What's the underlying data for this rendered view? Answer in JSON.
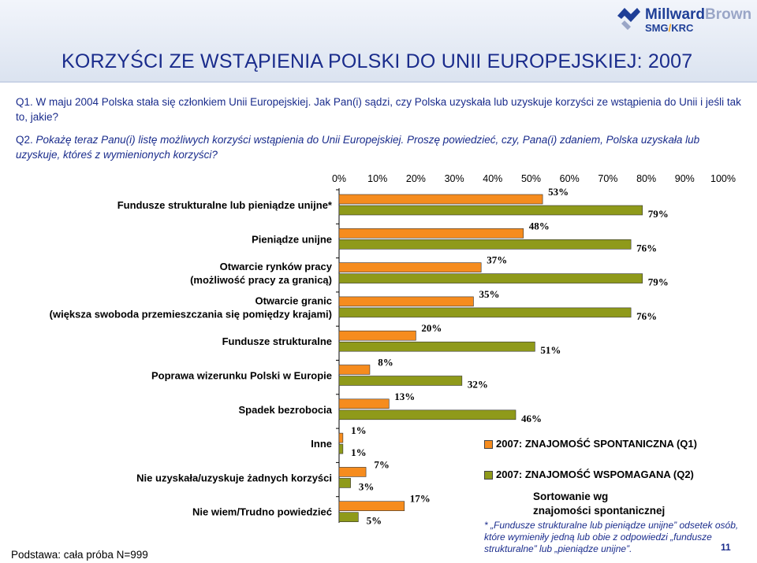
{
  "title": "KORZYŚCI ZE WSTĄPIENIA POLSKI DO UNII EUROPEJSKIEJ: 2007",
  "logo": {
    "brand_part1": "Millward",
    "brand_part2": "Brown",
    "sub_part1": "SMG",
    "sub_slash": "/",
    "sub_part2": "KRC"
  },
  "questions": {
    "q1": "Q1. W maju 2004 Polska stała się członkiem Unii Europejskiej. Jak Pan(i) sądzi, czy Polska uzyskała lub uzyskuje korzyści ze wstąpienia do Unii i jeśli tak to, jakie?",
    "q2_num": "Q2.",
    "q2_text": "Pokażę teraz Panu(i) listę możliwych korzyści wstąpienia do Unii Europejskiej. Proszę powiedzieć, czy, Pana(i) zdaniem, Polska uzyskała lub uzyskuje, któreś z wymienionych korzyści?"
  },
  "legend": {
    "spontaneous": "2007: ZNAJOMOŚĆ SPONTANICZNA (Q1)",
    "prompted": "2007: ZNAJOMOŚĆ WSPOMAGANA (Q2)"
  },
  "sort_note": {
    "line1": "Sortowanie wg",
    "line2": "znajomości spontanicznej"
  },
  "footnote": "* „Fundusze strukturalne lub pieniądze unijne” odsetek osób, które wymieniły jedną lub obie z odpowiedzi „fundusze strukturalne” lub „pieniądze unijne”.",
  "base": "Podstawa: cała próba N=999",
  "page_number": "11",
  "colors": {
    "spontaneous": "#f68c1e",
    "prompted": "#8f9a1a",
    "title": "#1a2c8c",
    "header_band": "#dbe3f0"
  },
  "chart_data": {
    "type": "bar",
    "orientation": "horizontal",
    "xlim": [
      0,
      100
    ],
    "ticks": [
      "0%",
      "10%",
      "20%",
      "30%",
      "40%",
      "50%",
      "60%",
      "70%",
      "80%",
      "90%",
      "100%"
    ],
    "categories": [
      [
        "Fundusze strukturalne lub pieniądze unijne*"
      ],
      [
        "Pieniądze unijne"
      ],
      [
        "Otwarcie rynków pracy",
        "(możliwość pracy za granicą)"
      ],
      [
        "Otwarcie granic",
        "(większa swoboda przemieszczania się pomiędzy krajami)"
      ],
      [
        "Fundusze strukturalne"
      ],
      [
        "Poprawa wizerunku Polski w Europie"
      ],
      [
        "Spadek bezrobocia"
      ],
      [
        "Inne"
      ],
      [
        "Nie uzyskała/uzyskuje żadnych korzyści"
      ],
      [
        "Nie wiem/Trudno powiedzieć"
      ]
    ],
    "series": [
      {
        "name": "2007: ZNAJOMOŚĆ SPONTANICZNA (Q1)",
        "values": [
          53,
          48,
          37,
          35,
          20,
          8,
          13,
          1,
          7,
          17
        ],
        "labels": [
          "53%",
          "48%",
          "37%",
          "35%",
          "20%",
          "8%",
          "13%",
          "1%",
          "7%",
          "17%"
        ]
      },
      {
        "name": "2007: ZNAJOMOŚĆ WSPOMAGANA (Q2)",
        "values": [
          79,
          76,
          79,
          76,
          51,
          32,
          46,
          1,
          3,
          5
        ],
        "labels": [
          "79%",
          "76%",
          "79%",
          "76%",
          "51%",
          "32%",
          "46%",
          "1%",
          "3%",
          "5%"
        ]
      }
    ],
    "grid": false,
    "legend_position": "bottom-right"
  }
}
